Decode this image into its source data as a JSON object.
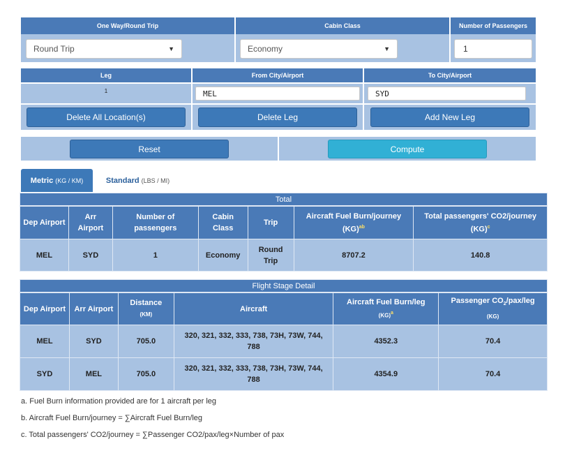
{
  "form": {
    "trip_type": {
      "label": "One Way/Round Trip",
      "value": "Round Trip"
    },
    "cabin_class": {
      "label": "Cabin Class",
      "value": "Economy"
    },
    "passengers": {
      "label": "Number of Passengers",
      "value": "1"
    },
    "legs_header": {
      "leg": "Leg",
      "from": "From City/Airport",
      "to": "To City/Airport"
    },
    "legs": [
      {
        "number": "1",
        "from": "MEL",
        "to": "SYD"
      }
    ],
    "buttons": {
      "delete_all": "Delete All Location(s)",
      "delete_leg": "Delete Leg",
      "add_leg": "Add New Leg",
      "reset": "Reset",
      "compute": "Compute"
    }
  },
  "tabs": [
    {
      "label": "Metric",
      "unit": "(KG / KM)",
      "active": true
    },
    {
      "label": "Standard",
      "unit": "(LBS / MI)",
      "active": false
    }
  ],
  "total_table": {
    "caption": "Total",
    "headers": {
      "dep": "Dep Airport",
      "arr": "Arr Airport",
      "pax": "Number of passengers",
      "cabin": "Cabin Class",
      "trip": "Trip",
      "fuel": "Aircraft Fuel Burn/journey",
      "fuel_unit": "(KG)",
      "fuel_sup": "ab",
      "co2": "Total passengers' CO2/journey",
      "co2_unit": "(KG)",
      "co2_sup": "c"
    },
    "row": {
      "dep": "MEL",
      "arr": "SYD",
      "pax": "1",
      "cabin": "Economy",
      "trip": "Round Trip",
      "fuel": "8707.2",
      "co2": "140.8"
    }
  },
  "stage_table": {
    "caption": "Flight Stage Detail",
    "headers": {
      "dep": "Dep Airport",
      "arr": "Arr Airport",
      "distance": "Distance",
      "distance_unit": "(KM)",
      "aircraft": "Aircraft",
      "fuel": "Aircraft Fuel Burn/leg",
      "fuel_unit": "(KG)",
      "fuel_sup": "a",
      "co2_pre": "Passenger CO",
      "co2_sub": "2",
      "co2_post": "/pax/leg",
      "co2_unit": "(KG)"
    },
    "rows": [
      {
        "dep": "MEL",
        "arr": "SYD",
        "distance": "705.0",
        "aircraft": "320, 321, 332, 333, 738, 73H, 73W, 744, 788",
        "fuel": "4352.3",
        "co2": "70.4"
      },
      {
        "dep": "SYD",
        "arr": "MEL",
        "distance": "705.0",
        "aircraft": "320, 321, 332, 333, 738, 73H, 73W, 744, 788",
        "fuel": "4354.9",
        "co2": "70.4"
      }
    ]
  },
  "notes": [
    "a. Fuel Burn information provided are for 1 aircraft per leg",
    "b. Aircraft Fuel Burn/journey = ∑Aircraft Fuel Burn/leg",
    "c. Total passengers' CO2/journey = ∑Passenger CO2/pax/leg×Number of pax"
  ]
}
